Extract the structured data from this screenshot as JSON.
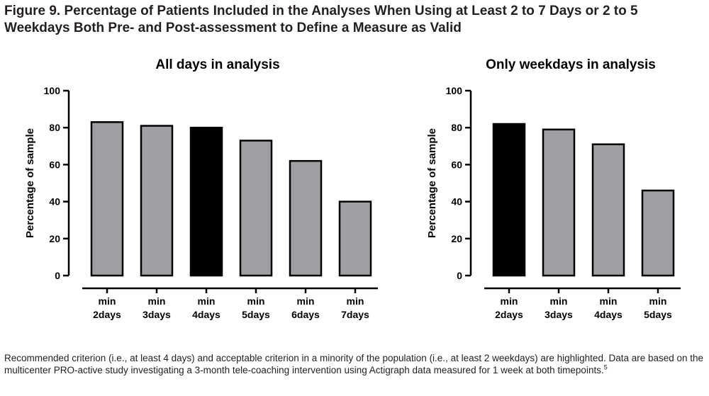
{
  "figure": {
    "title": "Figure 9. Percentage of Patients Included in the Analyses When Using at Least 2 to 7 Days or 2 to 5 Weekdays Both Pre- and Post-assessment to Define a Measure as Valid",
    "footnote": {
      "text": "Recommended criterion (i.e., at least 4 days) and acceptable criterion in a minority of the population (i.e., at least 2 weekdays) are highlighted. Data are based on the multicenter PRO-active study investigating a 3-month tele-coaching intervention using Actigraph data measured for 1 week at both timepoints.",
      "ref": "5"
    }
  },
  "colors": {
    "normal": "#a0a0a4",
    "highlight": "#000000",
    "stroke": "#000000"
  },
  "chart_data": [
    {
      "type": "bar",
      "title": "All days in analysis",
      "ylabel": "Percentage of sample",
      "xlabel": "",
      "ylim": [
        0,
        100
      ],
      "yticks": [
        0,
        20,
        40,
        60,
        80,
        100
      ],
      "grid": false,
      "categories": [
        {
          "line1": "min",
          "line2": "2days"
        },
        {
          "line1": "min",
          "line2": "3days"
        },
        {
          "line1": "min",
          "line2": "4days"
        },
        {
          "line1": "min",
          "line2": "5days"
        },
        {
          "line1": "min",
          "line2": "6days"
        },
        {
          "line1": "min",
          "line2": "7days"
        }
      ],
      "values": [
        83,
        81,
        80,
        73,
        62,
        40
      ],
      "highlight": [
        false,
        false,
        true,
        false,
        false,
        false
      ]
    },
    {
      "type": "bar",
      "title": "Only weekdays in analysis",
      "ylabel": "Percentage of sample",
      "xlabel": "",
      "ylim": [
        0,
        100
      ],
      "yticks": [
        0,
        20,
        40,
        60,
        80,
        100
      ],
      "grid": false,
      "categories": [
        {
          "line1": "min",
          "line2": "2days"
        },
        {
          "line1": "min",
          "line2": "3days"
        },
        {
          "line1": "min",
          "line2": "4days"
        },
        {
          "line1": "min",
          "line2": "5days"
        }
      ],
      "values": [
        82,
        79,
        71,
        46
      ],
      "highlight": [
        true,
        false,
        false,
        false
      ]
    }
  ]
}
